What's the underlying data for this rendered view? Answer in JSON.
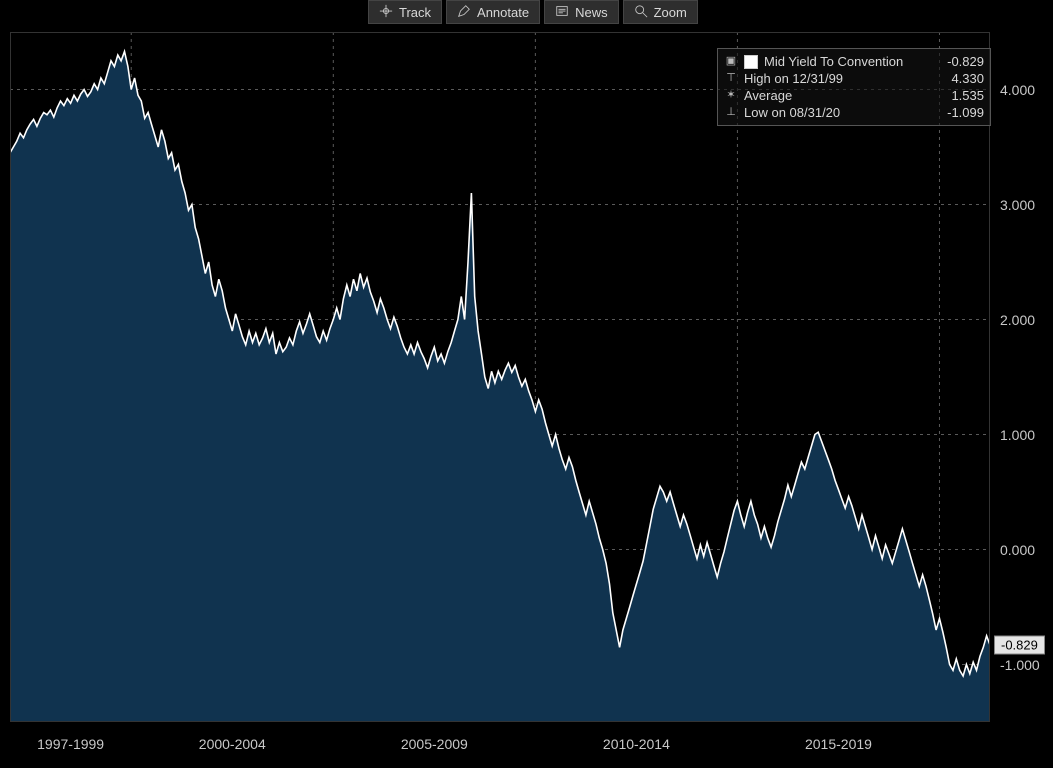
{
  "toolbar": [
    {
      "name": "track-tool",
      "label": "Track",
      "icon": "crosshair"
    },
    {
      "name": "annotate-tool",
      "label": "Annotate",
      "icon": "pencil"
    },
    {
      "name": "news-tool",
      "label": "News",
      "icon": "news"
    },
    {
      "name": "zoom-tool",
      "label": "Zoom",
      "icon": "zoom"
    }
  ],
  "legend": {
    "series_label": "Mid Yield To Convention",
    "series_value": "-0.829",
    "high_label": "High on 12/31/99",
    "high_value": "4.330",
    "avg_label": "Average",
    "avg_value": "1.535",
    "low_label": "Low on 08/31/20",
    "low_value": "-1.099"
  },
  "chart": {
    "type": "area",
    "background_color": "#000000",
    "grid_color": "#5a5a5a",
    "grid_dash": "3 4",
    "area_fill": "#10334f",
    "line_stroke": "#ffffff",
    "line_width": 1.6,
    "ylim": [
      -1.5,
      4.5
    ],
    "yticks": [
      4.0,
      3.0,
      2.0,
      1.0,
      0.0,
      -1.0
    ],
    "ytick_labels": [
      "4.000",
      "3.000",
      "2.000",
      "1.000",
      "0.000",
      "-1.000"
    ],
    "x_groups": [
      {
        "label": "1997-1999",
        "start": 0,
        "end": 36
      },
      {
        "label": "2000-2004",
        "start": 36,
        "end": 96
      },
      {
        "label": "2005-2009",
        "start": 96,
        "end": 156
      },
      {
        "label": "2010-2014",
        "start": 156,
        "end": 216
      },
      {
        "label": "2015-2019",
        "start": 216,
        "end": 276
      }
    ],
    "x_count": 292,
    "last_value": -0.829,
    "last_label": "-0.829",
    "series": [
      3.45,
      3.5,
      3.55,
      3.62,
      3.58,
      3.65,
      3.7,
      3.74,
      3.68,
      3.75,
      3.8,
      3.78,
      3.82,
      3.76,
      3.84,
      3.9,
      3.86,
      3.92,
      3.88,
      3.95,
      3.9,
      3.96,
      4.0,
      3.94,
      3.98,
      4.05,
      4.0,
      4.1,
      4.05,
      4.15,
      4.25,
      4.2,
      4.3,
      4.25,
      4.33,
      4.2,
      4.0,
      4.1,
      3.95,
      3.9,
      3.75,
      3.8,
      3.7,
      3.6,
      3.5,
      3.65,
      3.55,
      3.4,
      3.45,
      3.3,
      3.35,
      3.2,
      3.1,
      2.95,
      3.0,
      2.8,
      2.7,
      2.55,
      2.4,
      2.5,
      2.3,
      2.2,
      2.35,
      2.25,
      2.1,
      2.0,
      1.9,
      2.05,
      1.95,
      1.85,
      1.78,
      1.9,
      1.8,
      1.88,
      1.78,
      1.84,
      1.92,
      1.8,
      1.88,
      1.7,
      1.8,
      1.72,
      1.76,
      1.84,
      1.78,
      1.9,
      1.98,
      1.88,
      1.96,
      2.05,
      1.95,
      1.85,
      1.8,
      1.9,
      1.82,
      1.92,
      2.0,
      2.1,
      2.0,
      2.18,
      2.3,
      2.2,
      2.35,
      2.25,
      2.4,
      2.28,
      2.36,
      2.24,
      2.16,
      2.06,
      2.18,
      2.1,
      2.0,
      1.92,
      2.02,
      1.94,
      1.84,
      1.76,
      1.7,
      1.78,
      1.7,
      1.8,
      1.72,
      1.66,
      1.58,
      1.68,
      1.76,
      1.64,
      1.7,
      1.62,
      1.72,
      1.8,
      1.9,
      2.0,
      2.2,
      2.0,
      2.5,
      3.1,
      2.2,
      1.9,
      1.7,
      1.5,
      1.4,
      1.55,
      1.45,
      1.55,
      1.48,
      1.56,
      1.62,
      1.54,
      1.6,
      1.5,
      1.42,
      1.48,
      1.38,
      1.3,
      1.2,
      1.3,
      1.22,
      1.1,
      1.0,
      0.9,
      1.0,
      0.88,
      0.78,
      0.7,
      0.8,
      0.72,
      0.6,
      0.5,
      0.4,
      0.3,
      0.42,
      0.32,
      0.22,
      0.1,
      0.0,
      -0.12,
      -0.3,
      -0.55,
      -0.7,
      -0.85,
      -0.7,
      -0.6,
      -0.5,
      -0.4,
      -0.3,
      -0.2,
      -0.1,
      0.05,
      0.2,
      0.35,
      0.45,
      0.55,
      0.5,
      0.42,
      0.5,
      0.4,
      0.3,
      0.2,
      0.3,
      0.22,
      0.12,
      0.02,
      -0.08,
      0.04,
      -0.06,
      0.06,
      -0.04,
      -0.14,
      -0.24,
      -0.12,
      -0.02,
      0.1,
      0.22,
      0.34,
      0.42,
      0.3,
      0.2,
      0.32,
      0.42,
      0.3,
      0.22,
      0.1,
      0.2,
      0.1,
      0.02,
      0.12,
      0.24,
      0.34,
      0.44,
      0.56,
      0.46,
      0.56,
      0.66,
      0.76,
      0.7,
      0.8,
      0.9,
      1.0,
      1.02,
      0.94,
      0.86,
      0.78,
      0.7,
      0.6,
      0.52,
      0.44,
      0.36,
      0.46,
      0.38,
      0.28,
      0.18,
      0.3,
      0.2,
      0.1,
      0.0,
      0.12,
      0.02,
      -0.08,
      0.04,
      -0.04,
      -0.12,
      -0.02,
      0.08,
      0.18,
      0.08,
      -0.02,
      -0.12,
      -0.22,
      -0.32,
      -0.22,
      -0.32,
      -0.44,
      -0.56,
      -0.7,
      -0.6,
      -0.72,
      -0.85,
      -1.0,
      -1.05,
      -0.95,
      -1.05,
      -1.1,
      -1.0,
      -1.08,
      -0.98,
      -1.05,
      -0.93,
      -0.85,
      -0.75,
      -0.83
    ]
  }
}
